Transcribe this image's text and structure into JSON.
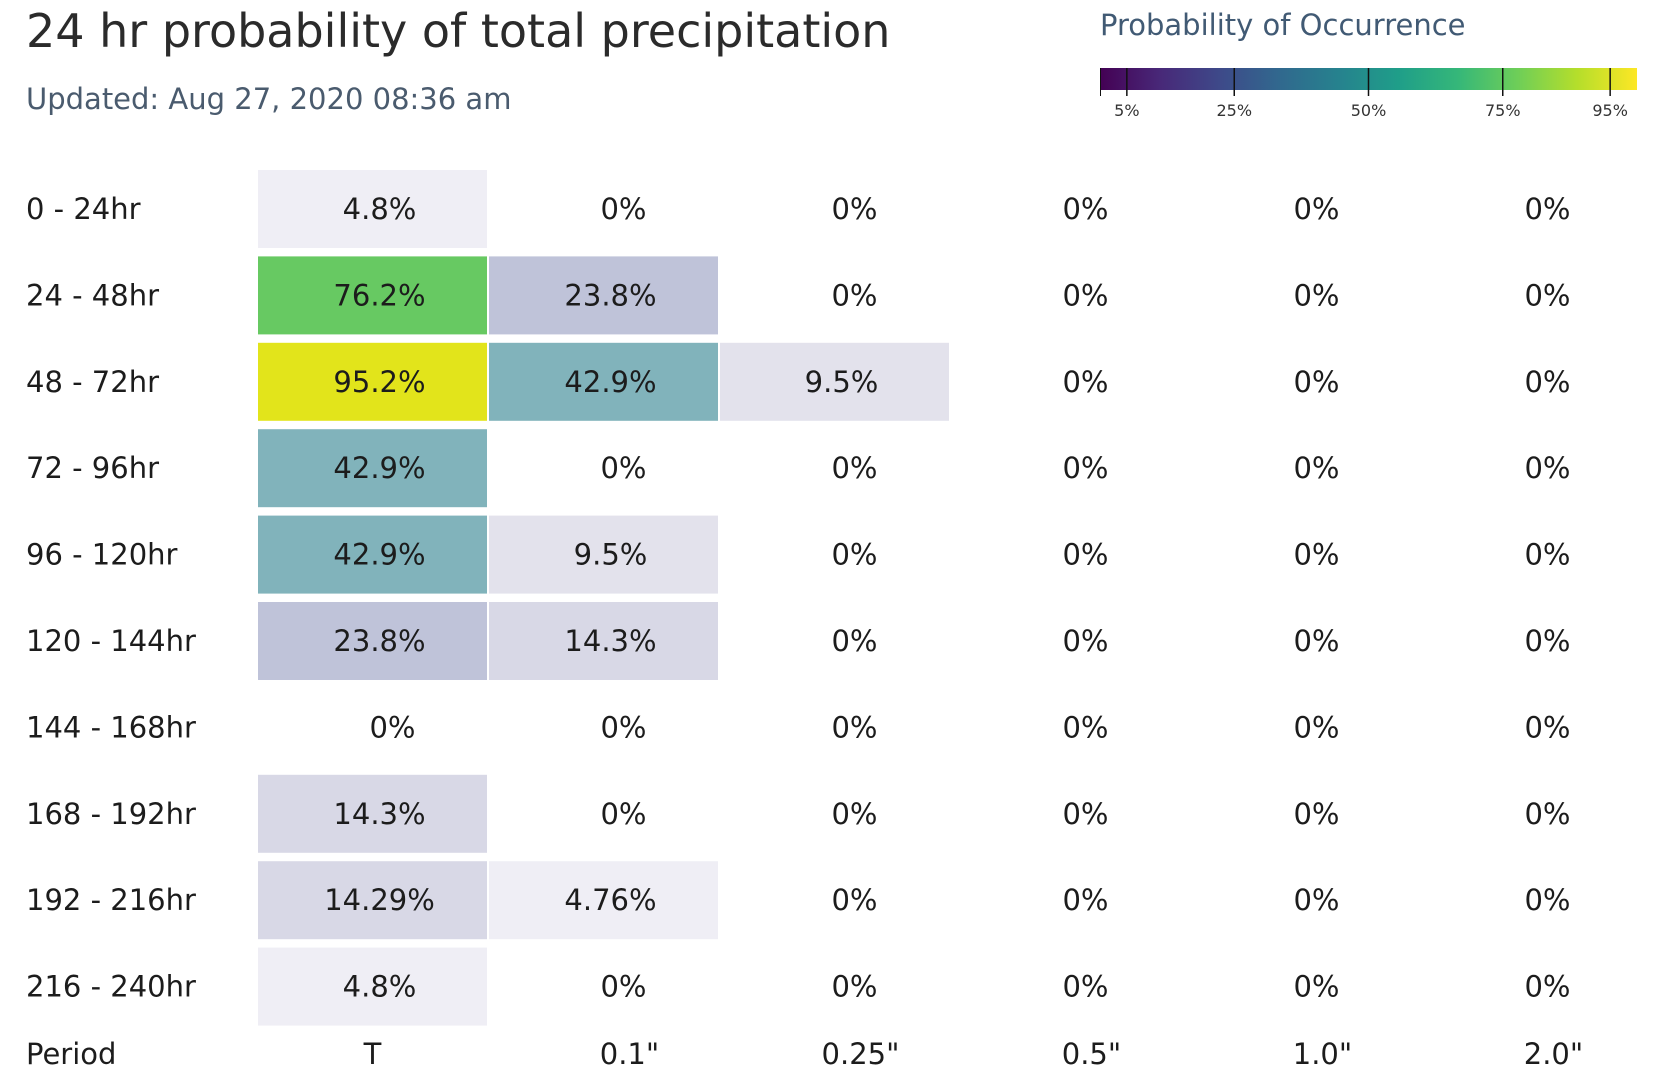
{
  "chart_data": {
    "type": "heatmap",
    "title": "24 hr probability of total precipitation",
    "subtitle": "Updated: Aug 27, 2020 08:36 am",
    "legend": {
      "title": "Probability of Occurrence",
      "ticks": [
        {
          "value": 5,
          "label": "5%"
        },
        {
          "value": 25,
          "label": "25%"
        },
        {
          "value": 50,
          "label": "50%"
        },
        {
          "value": 75,
          "label": "75%"
        },
        {
          "value": 95,
          "label": "95%"
        }
      ],
      "range": [
        0,
        100
      ],
      "placement": "top-right"
    },
    "xlabel": "Period",
    "x": [
      "T",
      "0.1\"",
      "0.25\"",
      "0.5\"",
      "1.0\"",
      "2.0\""
    ],
    "y": [
      "0 - 24hr",
      "24 - 48hr",
      "48 - 72hr",
      "72 - 96hr",
      "96 - 120hr",
      "120 - 144hr",
      "144 - 168hr",
      "168 - 192hr",
      "192 - 216hr",
      "216 - 240hr"
    ],
    "values": [
      [
        4.8,
        0,
        0,
        0,
        0,
        0
      ],
      [
        76.2,
        23.8,
        0,
        0,
        0,
        0
      ],
      [
        95.2,
        42.9,
        9.5,
        0,
        0,
        0
      ],
      [
        42.9,
        0,
        0,
        0,
        0,
        0
      ],
      [
        42.9,
        9.5,
        0,
        0,
        0,
        0
      ],
      [
        23.8,
        14.3,
        0,
        0,
        0,
        0
      ],
      [
        0,
        0,
        0,
        0,
        0,
        0
      ],
      [
        14.3,
        0,
        0,
        0,
        0,
        0
      ],
      [
        14.29,
        4.76,
        0,
        0,
        0,
        0
      ],
      [
        4.8,
        0,
        0,
        0,
        0,
        0
      ]
    ],
    "labels": [
      [
        "4.8%",
        "0%",
        "0%",
        "0%",
        "0%",
        "0%"
      ],
      [
        "76.2%",
        "23.8%",
        "0%",
        "0%",
        "0%",
        "0%"
      ],
      [
        "95.2%",
        "42.9%",
        "9.5%",
        "0%",
        "0%",
        "0%"
      ],
      [
        "42.9%",
        "0%",
        "0%",
        "0%",
        "0%",
        "0%"
      ],
      [
        "42.9%",
        "9.5%",
        "0%",
        "0%",
        "0%",
        "0%"
      ],
      [
        "23.8%",
        "14.3%",
        "0%",
        "0%",
        "0%",
        "0%"
      ],
      [
        "0%",
        "0%",
        "0%",
        "0%",
        "0%",
        "0%"
      ],
      [
        "14.3%",
        "0%",
        "0%",
        "0%",
        "0%",
        "0%"
      ],
      [
        "14.29%",
        "4.76%",
        "0%",
        "0%",
        "0%",
        "0%"
      ],
      [
        "4.8%",
        "0%",
        "0%",
        "0%",
        "0%",
        "0%"
      ]
    ],
    "colors": {
      "4.8": "#efeef5",
      "4.76": "#efeef5",
      "9.5": "#e3e2ec",
      "14.3": "#d8d8e6",
      "14.29": "#d8d8e6",
      "23.8": "#bfc3d9",
      "42.9": "#81b3bb",
      "76.2": "#67c962",
      "95.2": "#e2e41b"
    }
  }
}
